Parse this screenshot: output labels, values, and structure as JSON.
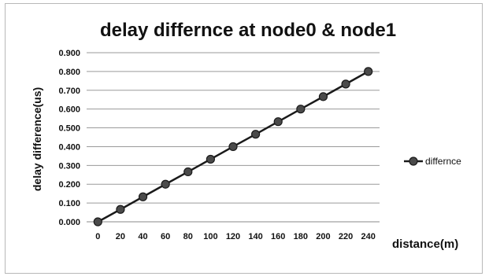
{
  "chart_data": {
    "type": "line",
    "title": "delay differnce at node0 & node1",
    "xlabel": "distance(m)",
    "ylabel": "delay difference(us)",
    "categories": [
      "0",
      "20",
      "40",
      "60",
      "80",
      "100",
      "120",
      "140",
      "160",
      "180",
      "200",
      "220",
      "240"
    ],
    "y_ticks": [
      "0.000",
      "0.100",
      "0.200",
      "0.300",
      "0.400",
      "0.500",
      "0.600",
      "0.700",
      "0.800",
      "0.900"
    ],
    "ylim": [
      0,
      0.9
    ],
    "grid": true,
    "legend_position": "right",
    "series": [
      {
        "name": "differnce",
        "color": "#1a1a1a",
        "marker_color": "#4a4a4a",
        "values": [
          0.0,
          0.066,
          0.133,
          0.2,
          0.266,
          0.333,
          0.4,
          0.466,
          0.533,
          0.6,
          0.666,
          0.733,
          0.8
        ]
      }
    ]
  }
}
